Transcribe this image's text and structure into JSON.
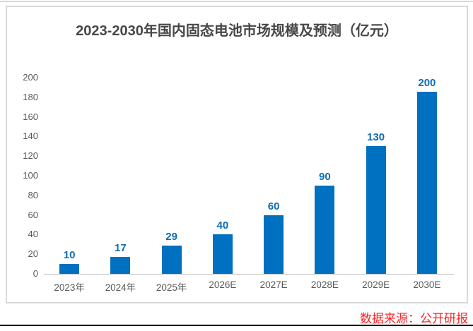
{
  "page": {
    "source_note": "数据来源：公开研报",
    "colors": {
      "bar": "#0070c0",
      "value_label": "#0f6cb4",
      "title_text": "#474747",
      "axis_text": "#595959",
      "source_text": "#ff1f1f",
      "frame_border": "#d9d9d9",
      "axis_line": "#bfbfbf",
      "bottom_rule": "#000000"
    }
  },
  "chart_data": {
    "type": "bar",
    "title": "2023-2030年国内固态电池市场规模及预测（亿元）",
    "categories": [
      "2023年",
      "2024年",
      "2025年",
      "2026E",
      "2027E",
      "2028E",
      "2029E",
      "2030E"
    ],
    "values": [
      10,
      17,
      29,
      40,
      60,
      90,
      130,
      200
    ],
    "unit": "亿元",
    "xlabel": "",
    "ylabel": "",
    "ylim": [
      0,
      200
    ],
    "ytick_step": 20,
    "grid": false,
    "legend": "none",
    "data_labels": true
  }
}
